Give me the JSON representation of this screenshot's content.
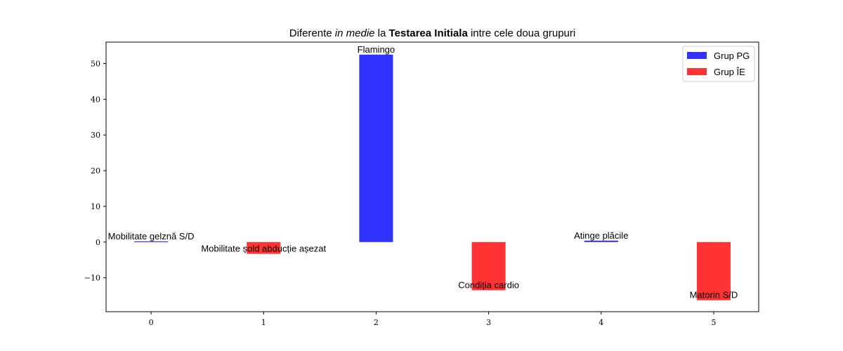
{
  "chart_data": {
    "type": "bar",
    "title_parts": [
      {
        "text": "Diferente ",
        "style": "normal"
      },
      {
        "text": "in medie",
        "style": "italic"
      },
      {
        "text": " la ",
        "style": "normal"
      },
      {
        "text": "Testarea Initiala",
        "style": "bold"
      },
      {
        "text": " intre cele doua grupuri",
        "style": "normal"
      }
    ],
    "x": [
      0,
      1,
      2,
      3,
      4,
      5
    ],
    "values": [
      0.2,
      -3.3,
      52.5,
      -13.5,
      0.4,
      -16.3
    ],
    "groups": [
      "Grup PG",
      "Grup ÎE",
      "Grup PG",
      "Grup ÎE",
      "Grup PG",
      "Grup ÎE"
    ],
    "bar_labels": [
      "Mobilitate gelznă S/D",
      "Mobilitate șold abducție așezat",
      "Flamingo",
      "Condiția cardio",
      "Atinge plăcile",
      "Matorin S/D"
    ],
    "legend": [
      {
        "name": "Grup PG",
        "color": "#3333ff"
      },
      {
        "name": "Grup ÎE",
        "color": "#ff3333"
      }
    ],
    "xlim": [
      -0.4,
      5.4
    ],
    "ylim": [
      -19.5,
      56
    ],
    "xticks": [
      0,
      1,
      2,
      3,
      4,
      5
    ],
    "yticks": [
      -10,
      0,
      10,
      20,
      30,
      40,
      50
    ],
    "ytick_labels": [
      "−10",
      "0",
      "10",
      "20",
      "30",
      "40",
      "50"
    ],
    "legend_position": "upper right",
    "grid": false
  }
}
